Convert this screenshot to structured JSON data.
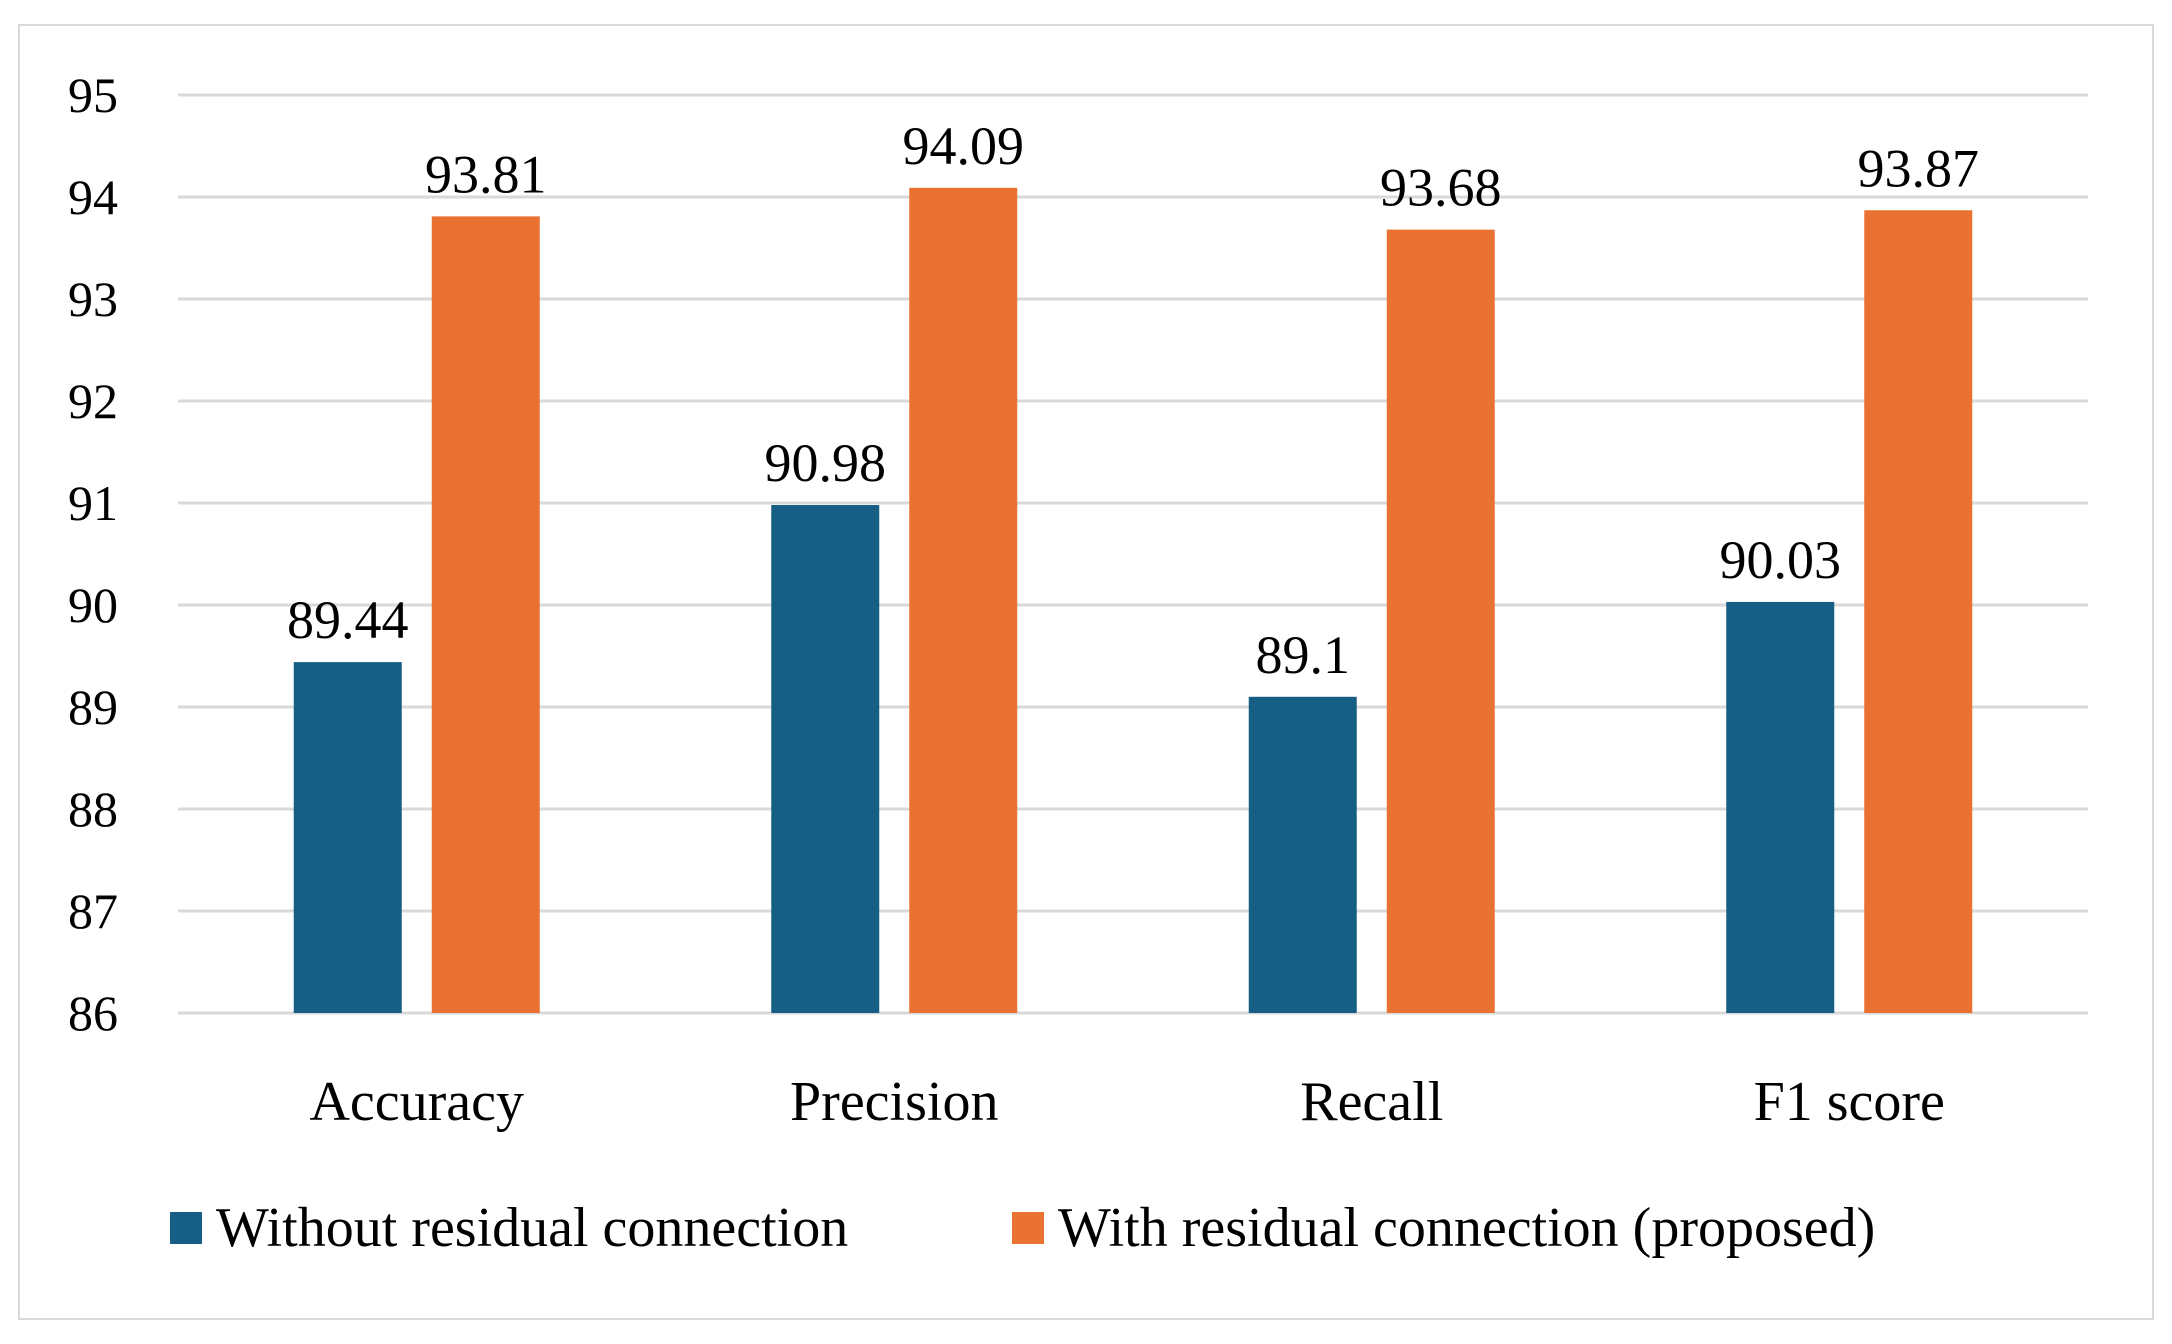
{
  "chart_data": {
    "type": "bar",
    "title": "",
    "xlabel": "",
    "ylabel": "",
    "categories": [
      "Accuracy",
      "Precision",
      "Recall",
      "F1 score"
    ],
    "series": [
      {
        "name": "Without residual connection",
        "color": "#165e83",
        "values": [
          89.44,
          90.98,
          89.1,
          90.03
        ],
        "labels": [
          "89.44",
          "90.98",
          "89.1",
          "90.03"
        ]
      },
      {
        "name": "With residual connection (proposed)",
        "color": "#e97132",
        "values": [
          93.81,
          94.09,
          93.68,
          93.87
        ],
        "labels": [
          "93.81",
          "94.09",
          "93.68",
          "93.87"
        ]
      }
    ],
    "ylim": [
      86,
      95
    ],
    "yticks": [
      86,
      87,
      88,
      89,
      90,
      91,
      92,
      93,
      94,
      95
    ],
    "grid": true,
    "legend_position": "bottom"
  }
}
